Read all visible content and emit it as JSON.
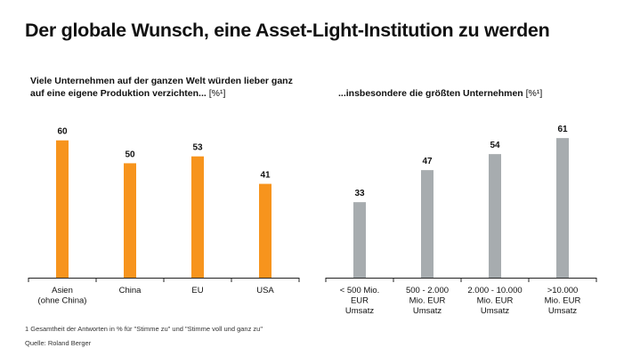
{
  "title": "Der globale Wunsch, eine Asset-Light-Institution zu werden",
  "colors": {
    "left_bar": "#F7941D",
    "right_bar": "#A7ACAF",
    "axis": "#222222"
  },
  "chart_data": [
    {
      "type": "bar",
      "title": "Viele Unternehmen auf der ganzen Welt würden lieber ganz auf eine eigene Produktion verzichten...",
      "unit": "[%¹]",
      "categories": [
        "Asien (ohne China)",
        "China",
        "EU",
        "USA"
      ],
      "category_lines": [
        [
          "Asien",
          "(ohne China)"
        ],
        [
          "China"
        ],
        [
          "EU"
        ],
        [
          "USA"
        ]
      ],
      "values": [
        60,
        50,
        53,
        41
      ],
      "ylim": [
        0,
        70
      ],
      "grid": false,
      "color": "#F7941D"
    },
    {
      "type": "bar",
      "title": "...insbesondere die größten Unternehmen",
      "unit": "[%¹]",
      "categories": [
        "< 500 Mio. EUR Umsatz",
        "500 - 2.000 Mio. EUR Umsatz",
        "2.000 - 10.000 Mio. EUR Umsatz",
        ">10.000 Mio. EUR Umsatz"
      ],
      "category_lines": [
        [
          "< 500 Mio.",
          "EUR",
          "Umsatz"
        ],
        [
          "500 - 2.000",
          "Mio. EUR",
          "Umsatz"
        ],
        [
          "2.000 - 10.000",
          "Mio. EUR",
          "Umsatz"
        ],
        [
          ">10.000",
          "Mio. EUR",
          "Umsatz"
        ]
      ],
      "values": [
        33,
        47,
        54,
        61
      ],
      "ylim": [
        0,
        70
      ],
      "grid": false,
      "color": "#A7ACAF"
    }
  ],
  "footnote": "1 Gesamtheit der Antworten in % für \"Stimme zu\" und \"Stimme voll und ganz zu\"",
  "source": "Quelle: Roland Berger"
}
